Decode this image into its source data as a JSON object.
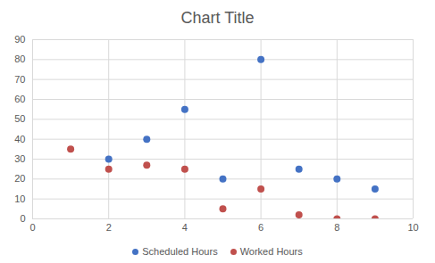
{
  "chart_data": {
    "type": "scatter",
    "title": "Chart Title",
    "x": [
      1,
      2,
      3,
      4,
      5,
      6,
      7,
      8,
      9
    ],
    "series": [
      {
        "name": "Scheduled Hours",
        "color": "#4472c4",
        "marker": "circle",
        "values": [
          null,
          30,
          40,
          55,
          20,
          80,
          25,
          20,
          15
        ]
      },
      {
        "name": "Worked Hours",
        "color": "#c0504d",
        "marker": "circle",
        "values": [
          35,
          25,
          27,
          25,
          5,
          15,
          2,
          0,
          0
        ]
      }
    ],
    "xlim": [
      0,
      10
    ],
    "xticks": [
      0,
      2,
      4,
      6,
      8,
      10
    ],
    "ylim": [
      0,
      90
    ],
    "yticks": [
      0,
      10,
      20,
      30,
      40,
      50,
      60,
      70,
      80,
      90
    ],
    "grid": true,
    "legend": "bottom"
  }
}
